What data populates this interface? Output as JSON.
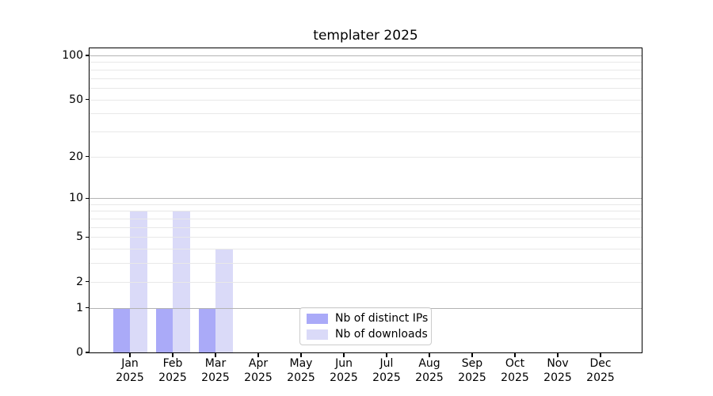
{
  "chart_data": {
    "type": "bar",
    "title": "templater 2025",
    "categories": [
      "Jan",
      "Feb",
      "Mar",
      "Apr",
      "May",
      "Jun",
      "Jul",
      "Aug",
      "Sep",
      "Oct",
      "Nov",
      "Dec"
    ],
    "year": "2025",
    "series": [
      {
        "name": "Nb of distinct IPs",
        "color": "#aaaaf8",
        "values": [
          1,
          1,
          1,
          0,
          0,
          0,
          0,
          0,
          0,
          0,
          0,
          0
        ]
      },
      {
        "name": "Nb of downloads",
        "color": "#dadaf8",
        "values": [
          8,
          8,
          4,
          0,
          0,
          0,
          0,
          0,
          0,
          0,
          0,
          0
        ]
      }
    ],
    "xlabel": "",
    "ylabel": "",
    "y_scale": "log1p",
    "ylim": [
      0,
      112
    ],
    "y_ticks": [
      0,
      1,
      2,
      5,
      10,
      20,
      50,
      100
    ],
    "y_major_gridlines": [
      1,
      10,
      100
    ],
    "y_minor_gridlines": [
      2,
      3,
      4,
      5,
      6,
      7,
      8,
      9,
      20,
      30,
      40,
      50,
      60,
      70,
      80,
      90
    ],
    "grid": true,
    "grid_above_bars": true,
    "legend_position": "lower center",
    "colors": {
      "grid_major": "#b3b3b3",
      "grid_minor": "#e8e8e8",
      "spine": "#000000",
      "text": "#000000",
      "background": "#ffffff"
    }
  }
}
